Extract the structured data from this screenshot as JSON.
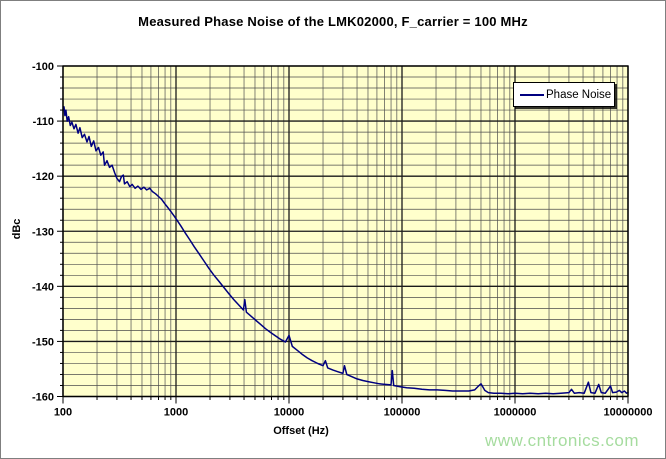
{
  "chart_data": {
    "type": "line",
    "title": "Measured Phase Noise of the LMK02000, F_carrier = 100 MHz",
    "xlabel": "Offset (Hz)",
    "ylabel": "dBc",
    "x_scale": "log",
    "xlim": [
      100,
      10000000
    ],
    "ylim": [
      -160,
      -100
    ],
    "x_ticks": [
      100,
      1000,
      10000,
      100000,
      1000000,
      10000000
    ],
    "x_tick_labels": [
      "100",
      "1000",
      "10000",
      "100000",
      "1000000",
      "10000000"
    ],
    "y_ticks": [
      -100,
      -110,
      -120,
      -130,
      -140,
      -150,
      -160
    ],
    "y_tick_labels": [
      "-100",
      "-110",
      "-120",
      "-130",
      "-140",
      "-150",
      "-160"
    ],
    "y_minor_step": 2,
    "grid": "major+minor",
    "plot_bg": "#ffffcc",
    "grid_major_color": "#1a1a1a",
    "grid_minor_color": "#4d4d4d",
    "axis_color": "#000000",
    "legend": {
      "position": "top-right",
      "entries": [
        {
          "label": "Phase Noise",
          "color": "#000080"
        }
      ]
    },
    "series": [
      {
        "name": "Phase Noise",
        "color": "#000080",
        "points": [
          [
            100,
            -108.0
          ],
          [
            102,
            -107.4
          ],
          [
            104,
            -109.0
          ],
          [
            106,
            -108.0
          ],
          [
            109,
            -110.0
          ],
          [
            112,
            -109.2
          ],
          [
            116,
            -110.8
          ],
          [
            120,
            -110.2
          ],
          [
            125,
            -111.4
          ],
          [
            130,
            -110.6
          ],
          [
            136,
            -112.2
          ],
          [
            141,
            -111.2
          ],
          [
            148,
            -113.0
          ],
          [
            155,
            -112.4
          ],
          [
            163,
            -113.8
          ],
          [
            170,
            -112.8
          ],
          [
            178,
            -114.6
          ],
          [
            187,
            -113.6
          ],
          [
            196,
            -115.4
          ],
          [
            206,
            -114.8
          ],
          [
            216,
            -116.2
          ],
          [
            227,
            -115.6
          ],
          [
            233,
            -118.0
          ],
          [
            245,
            -117.2
          ],
          [
            258,
            -118.4
          ],
          [
            272,
            -118.0
          ],
          [
            287,
            -119.4
          ],
          [
            300,
            -120.4
          ],
          [
            316,
            -121.0
          ],
          [
            330,
            -120.0
          ],
          [
            342,
            -119.8
          ],
          [
            350,
            -121.4
          ],
          [
            370,
            -121.0
          ],
          [
            390,
            -121.9
          ],
          [
            410,
            -121.5
          ],
          [
            435,
            -122.2
          ],
          [
            460,
            -121.8
          ],
          [
            490,
            -122.4
          ],
          [
            520,
            -122.0
          ],
          [
            550,
            -122.5
          ],
          [
            585,
            -122.2
          ],
          [
            620,
            -122.8
          ],
          [
            660,
            -123.2
          ],
          [
            700,
            -123.7
          ],
          [
            745,
            -124.2
          ],
          [
            790,
            -124.9
          ],
          [
            840,
            -125.6
          ],
          [
            900,
            -126.4
          ],
          [
            960,
            -127.2
          ],
          [
            1020,
            -128.0
          ],
          [
            1100,
            -129.0
          ],
          [
            1200,
            -130.2
          ],
          [
            1320,
            -131.5
          ],
          [
            1450,
            -132.8
          ],
          [
            1600,
            -134.1
          ],
          [
            1780,
            -135.5
          ],
          [
            1950,
            -136.7
          ],
          [
            2150,
            -137.9
          ],
          [
            2400,
            -139.1
          ],
          [
            2650,
            -140.2
          ],
          [
            2950,
            -141.4
          ],
          [
            3250,
            -142.4
          ],
          [
            3600,
            -143.4
          ],
          [
            3950,
            -144.3
          ],
          [
            4060,
            -142.4
          ],
          [
            4200,
            -144.7
          ],
          [
            4600,
            -145.4
          ],
          [
            5100,
            -146.2
          ],
          [
            5600,
            -146.9
          ],
          [
            6200,
            -147.7
          ],
          [
            6900,
            -148.4
          ],
          [
            7600,
            -149.0
          ],
          [
            8400,
            -149.6
          ],
          [
            9300,
            -150.1
          ],
          [
            10000,
            -148.9
          ],
          [
            10700,
            -150.9
          ],
          [
            11800,
            -151.6
          ],
          [
            13000,
            -152.3
          ],
          [
            14500,
            -153.0
          ],
          [
            16000,
            -153.5
          ],
          [
            18000,
            -154.0
          ],
          [
            20000,
            -154.4
          ],
          [
            21000,
            -153.5
          ],
          [
            22000,
            -154.8
          ],
          [
            24500,
            -155.2
          ],
          [
            27000,
            -155.5
          ],
          [
            30000,
            -155.8
          ],
          [
            31000,
            -154.4
          ],
          [
            32500,
            -156.0
          ],
          [
            36000,
            -156.4
          ],
          [
            40000,
            -156.8
          ],
          [
            45000,
            -157.1
          ],
          [
            50000,
            -157.3
          ],
          [
            56000,
            -157.5
          ],
          [
            63000,
            -157.7
          ],
          [
            71000,
            -157.8
          ],
          [
            80000,
            -157.9
          ],
          [
            82000,
            -155.3
          ],
          [
            84500,
            -158.0
          ],
          [
            95000,
            -158.2
          ],
          [
            110000,
            -158.4
          ],
          [
            128000,
            -158.5
          ],
          [
            150000,
            -158.7
          ],
          [
            175000,
            -158.8
          ],
          [
            205000,
            -158.8
          ],
          [
            240000,
            -158.9
          ],
          [
            280000,
            -159.0
          ],
          [
            330000,
            -159.0
          ],
          [
            390000,
            -159.0
          ],
          [
            440000,
            -158.8
          ],
          [
            470000,
            -158.2
          ],
          [
            500000,
            -157.7
          ],
          [
            540000,
            -158.9
          ],
          [
            580000,
            -159.3
          ],
          [
            650000,
            -159.4
          ],
          [
            750000,
            -159.4
          ],
          [
            870000,
            -159.5
          ],
          [
            1000000,
            -159.4
          ],
          [
            1170000,
            -159.5
          ],
          [
            1360000,
            -159.4
          ],
          [
            1600000,
            -159.5
          ],
          [
            1870000,
            -159.4
          ],
          [
            2180000,
            -159.5
          ],
          [
            2550000,
            -159.4
          ],
          [
            3000000,
            -159.3
          ],
          [
            3160000,
            -158.7
          ],
          [
            3350000,
            -159.4
          ],
          [
            3700000,
            -159.3
          ],
          [
            4100000,
            -159.4
          ],
          [
            4460000,
            -157.4
          ],
          [
            4700000,
            -159.3
          ],
          [
            5100000,
            -159.4
          ],
          [
            5500000,
            -157.8
          ],
          [
            5800000,
            -159.3
          ],
          [
            6300000,
            -159.4
          ],
          [
            7000000,
            -158.1
          ],
          [
            7300000,
            -159.3
          ],
          [
            7900000,
            -159.2
          ],
          [
            8400000,
            -158.9
          ],
          [
            8800000,
            -159.3
          ],
          [
            9300000,
            -159.0
          ],
          [
            9700000,
            -159.4
          ],
          [
            10000000,
            -159.3
          ]
        ]
      }
    ]
  },
  "watermark": {
    "text": "www.cntronics.com",
    "color": "#a6dc9f"
  }
}
